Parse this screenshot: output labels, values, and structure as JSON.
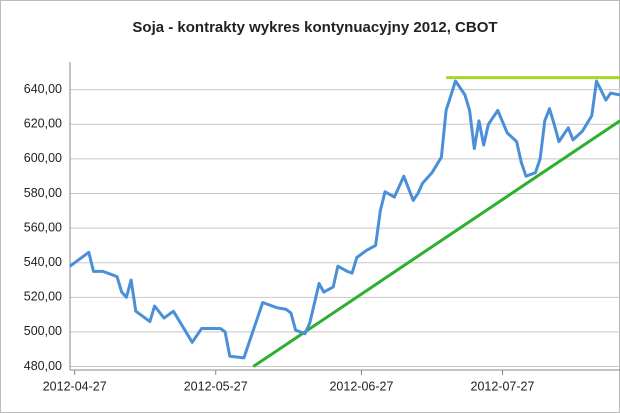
{
  "chart_data": {
    "type": "line",
    "title": "Soja - kontrakty wykres kontynuacyjny 2012, CBOT",
    "x": [
      "2012-04-26",
      "2012-04-30",
      "2012-05-01",
      "2012-05-03",
      "2012-05-05",
      "2012-05-06",
      "2012-05-07",
      "2012-05-08",
      "2012-05-09",
      "2012-05-10",
      "2012-05-13",
      "2012-05-14",
      "2012-05-16",
      "2012-05-18",
      "2012-05-22",
      "2012-05-24",
      "2012-05-28",
      "2012-05-29",
      "2012-05-30",
      "2012-06-02",
      "2012-06-04",
      "2012-06-06",
      "2012-06-09",
      "2012-06-11",
      "2012-06-12",
      "2012-06-13",
      "2012-06-15",
      "2012-06-16",
      "2012-06-18",
      "2012-06-19",
      "2012-06-21",
      "2012-06-22",
      "2012-06-24",
      "2012-06-25",
      "2012-06-26",
      "2012-06-28",
      "2012-06-30",
      "2012-07-01",
      "2012-07-02",
      "2012-07-04",
      "2012-07-05",
      "2012-07-06",
      "2012-07-08",
      "2012-07-09",
      "2012-07-10",
      "2012-07-12",
      "2012-07-14",
      "2012-07-15",
      "2012-07-17",
      "2012-07-19",
      "2012-07-20",
      "2012-07-21",
      "2012-07-22",
      "2012-07-23",
      "2012-07-24",
      "2012-07-26",
      "2012-07-28",
      "2012-07-30",
      "2012-07-31",
      "2012-08-01",
      "2012-08-03",
      "2012-08-04",
      "2012-08-05",
      "2012-08-06",
      "2012-08-07",
      "2012-08-08",
      "2012-08-10",
      "2012-08-11",
      "2012-08-13",
      "2012-08-15",
      "2012-08-16",
      "2012-08-18",
      "2012-08-19",
      "2012-08-21"
    ],
    "values": [
      538,
      546,
      535,
      535,
      533,
      532,
      523,
      520,
      530,
      512,
      506,
      515,
      508,
      512,
      494,
      502,
      502,
      500,
      486,
      485,
      501,
      517,
      514,
      513,
      511,
      501,
      499,
      505,
      528,
      523,
      526,
      538,
      535,
      534,
      543,
      547,
      550,
      570,
      581,
      578,
      584,
      590,
      576,
      580,
      586,
      592,
      601,
      628,
      645,
      637,
      628,
      606,
      622,
      608,
      620,
      628,
      615,
      610,
      598,
      590,
      592,
      600,
      622,
      629,
      620,
      610,
      618,
      611,
      616,
      625,
      645,
      634,
      638,
      637
    ],
    "color": "#4a8fd8",
    "trend_lines": [
      {
        "x": [
          "2012-06-04",
          "2012-08-21"
        ],
        "values": [
          480,
          622
        ],
        "color": "#2db02d"
      },
      {
        "x": [
          "2012-07-15",
          "2012-08-21"
        ],
        "values": [
          647,
          647
        ],
        "color": "#a6d62b"
      }
    ],
    "xlim": [
      "2012-04-26",
      "2012-08-21"
    ],
    "xticks": [
      "2012-04-27",
      "2012-05-27",
      "2012-06-27",
      "2012-07-27"
    ],
    "ylim": [
      478,
      656
    ],
    "yticks": [
      {
        "value": 480,
        "label": "480,00"
      },
      {
        "value": 500,
        "label": "500,00"
      },
      {
        "value": 520,
        "label": "520,00"
      },
      {
        "value": 540,
        "label": "540,00"
      },
      {
        "value": 560,
        "label": "560,00"
      },
      {
        "value": 580,
        "label": "580,00"
      },
      {
        "value": 600,
        "label": "600,00"
      },
      {
        "value": 620,
        "label": "620,00"
      },
      {
        "value": 640,
        "label": "640,00"
      }
    ],
    "grid": true
  }
}
